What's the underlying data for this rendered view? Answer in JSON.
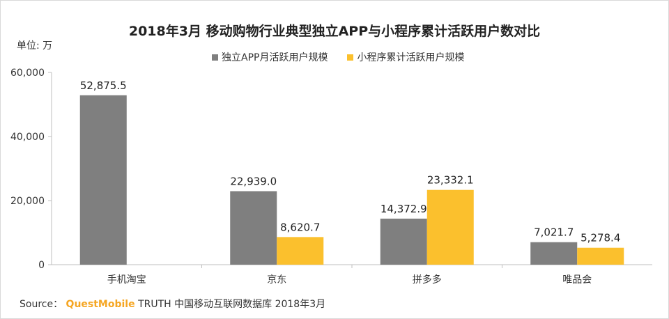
{
  "chart_data": {
    "type": "bar",
    "title": "2018年3月 移动购物行业典型独立APP与小程序累计活跃用户数对比",
    "unit_label": "单位: 万",
    "categories": [
      "手机淘宝",
      "京东",
      "拼多多",
      "唯品会"
    ],
    "series": [
      {
        "name": "独立APP月活跃用户规模",
        "color": "#7f7f7f",
        "values": [
          52875.5,
          22939.0,
          14372.9,
          7021.7
        ],
        "labels": [
          "52,875.5",
          "22,939.0",
          "14,372.9",
          "7,021.7"
        ]
      },
      {
        "name": "小程序累计活跃用户规模",
        "color": "#fbc02d",
        "values": [
          null,
          8620.7,
          23332.1,
          5278.4
        ],
        "labels": [
          "",
          "8,620.7",
          "23,332.1",
          "5,278.4"
        ]
      }
    ],
    "ylim": [
      0,
      60000
    ],
    "yticks": [
      0,
      20000,
      40000,
      60000
    ],
    "ytick_labels": [
      "0",
      "20,000",
      "40,000",
      "60,000"
    ],
    "xlabel": "",
    "ylabel": "",
    "grid": false,
    "legend_position": "top"
  },
  "source": {
    "prefix": "Source：",
    "brand": "QuestMobile",
    "text": "TRUTH 中国移动互联网数据库 2018年3月"
  }
}
